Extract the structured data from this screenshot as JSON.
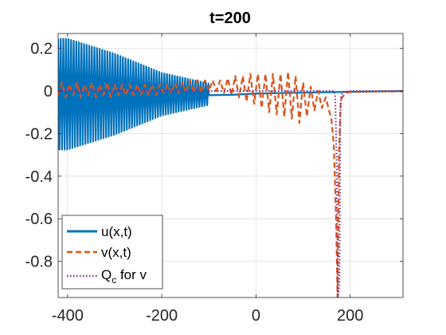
{
  "chart_data": {
    "type": "line",
    "title": "t=200",
    "xlabel": "",
    "ylabel": "",
    "xlim": [
      -420,
      312
    ],
    "ylim": [
      -0.97,
      0.27
    ],
    "grid": true,
    "legend_position": "bottom-left",
    "x_ticks": [
      -400,
      -200,
      0,
      200
    ],
    "x_tick_labels": [
      "-400",
      "-200",
      "0",
      "200"
    ],
    "y_ticks": [
      0.2,
      0,
      -0.2,
      -0.4,
      -0.6,
      -0.8
    ],
    "y_tick_labels": [
      "0.2",
      "0",
      "-0.2",
      "-0.4",
      "-0.6",
      "-0.8"
    ],
    "series": [
      {
        "name": "u(x,t)",
        "color": "#0072BD",
        "style": "solid",
        "oscillation": {
          "x_start": -420,
          "x_end": -100,
          "period": 5.5,
          "center": -0.015,
          "amplitude_profile": [
            [
              -420,
              0.26
            ],
            [
              -400,
              0.26
            ],
            [
              -300,
              0.19
            ],
            [
              -200,
              0.1
            ],
            [
              -100,
              0.05
            ]
          ]
        },
        "tail": [
          [
            -100,
            -0.02
          ],
          [
            -50,
            -0.018
          ],
          [
            0,
            -0.012
          ],
          [
            100,
            -0.008
          ],
          [
            200,
            -0.004
          ],
          [
            312,
            0.0
          ]
        ]
      },
      {
        "name": "v(x,t)",
        "color": "#D95319",
        "style": "dashed",
        "points": [
          [
            -420,
            -0.02
          ],
          [
            -412,
            0.04
          ],
          [
            -404,
            -0.03
          ],
          [
            -396,
            0.03
          ],
          [
            -388,
            -0.02
          ],
          [
            -380,
            0.04
          ],
          [
            -372,
            -0.03
          ],
          [
            -364,
            0.03
          ],
          [
            -356,
            -0.02
          ],
          [
            -348,
            0.04
          ],
          [
            -340,
            -0.03
          ],
          [
            -332,
            0.03
          ],
          [
            -324,
            -0.02
          ],
          [
            -316,
            0.04
          ],
          [
            -308,
            -0.03
          ],
          [
            -300,
            0.03
          ],
          [
            -292,
            -0.02
          ],
          [
            -284,
            0.03
          ],
          [
            -276,
            -0.02
          ],
          [
            -268,
            0.03
          ],
          [
            -260,
            -0.02
          ],
          [
            -252,
            0.03
          ],
          [
            -244,
            -0.02
          ],
          [
            -236,
            0.03
          ],
          [
            -228,
            -0.02
          ],
          [
            -220,
            0.03
          ],
          [
            -212,
            -0.02
          ],
          [
            -204,
            0.03
          ],
          [
            -196,
            -0.01
          ],
          [
            -188,
            0.03
          ],
          [
            -180,
            -0.01
          ],
          [
            -172,
            0.04
          ],
          [
            -164,
            -0.01
          ],
          [
            -156,
            0.04
          ],
          [
            -148,
            -0.01
          ],
          [
            -140,
            0.05
          ],
          [
            -132,
            -0.01
          ],
          [
            -124,
            0.05
          ],
          [
            -116,
            -0.01
          ],
          [
            -108,
            0.05
          ],
          [
            -100,
            0.0
          ],
          [
            -92,
            0.05
          ],
          [
            -84,
            0.0
          ],
          [
            -76,
            0.05
          ],
          [
            -68,
            -0.01
          ],
          [
            -60,
            0.06
          ],
          [
            -52,
            -0.02
          ],
          [
            -44,
            0.07
          ],
          [
            -36,
            -0.03
          ],
          [
            -28,
            0.07
          ],
          [
            -20,
            -0.05
          ],
          [
            -12,
            0.08
          ],
          [
            -4,
            -0.06
          ],
          [
            4,
            0.08
          ],
          [
            12,
            -0.08
          ],
          [
            20,
            0.08
          ],
          [
            28,
            -0.1
          ],
          [
            36,
            0.08
          ],
          [
            44,
            -0.11
          ],
          [
            52,
            0.08
          ],
          [
            60,
            -0.12
          ],
          [
            68,
            0.09
          ],
          [
            76,
            -0.13
          ],
          [
            84,
            0.07
          ],
          [
            92,
            -0.15
          ],
          [
            100,
            0.04
          ],
          [
            108,
            -0.12
          ],
          [
            116,
            0.02
          ],
          [
            124,
            -0.09
          ],
          [
            132,
            0.0
          ],
          [
            140,
            -0.08
          ],
          [
            148,
            -0.03
          ],
          [
            156,
            -0.1
          ],
          [
            160,
            -0.13
          ],
          [
            165,
            -0.25
          ],
          [
            170,
            -0.6
          ],
          [
            173,
            -0.97
          ],
          [
            176,
            -0.3
          ],
          [
            180,
            -0.04
          ],
          [
            190,
            -0.01
          ],
          [
            200,
            -0.005
          ],
          [
            250,
            -0.003
          ],
          [
            312,
            -0.002
          ]
        ]
      },
      {
        "name": "Q_c for v",
        "legend_main": "Q",
        "legend_sub": "c",
        "legend_suffix": " for v",
        "color": "#7E2F8E",
        "style": "dotted",
        "points": [
          [
            -420,
            0.0
          ],
          [
            150,
            0.0
          ],
          [
            165,
            0.0
          ],
          [
            168,
            -0.02
          ],
          [
            171,
            -0.3
          ],
          [
            174,
            -0.97
          ],
          [
            177,
            -0.9
          ],
          [
            179,
            -0.1
          ],
          [
            181,
            -0.02
          ],
          [
            185,
            -0.005
          ],
          [
            200,
            0.0
          ],
          [
            312,
            0.0
          ]
        ]
      }
    ]
  }
}
